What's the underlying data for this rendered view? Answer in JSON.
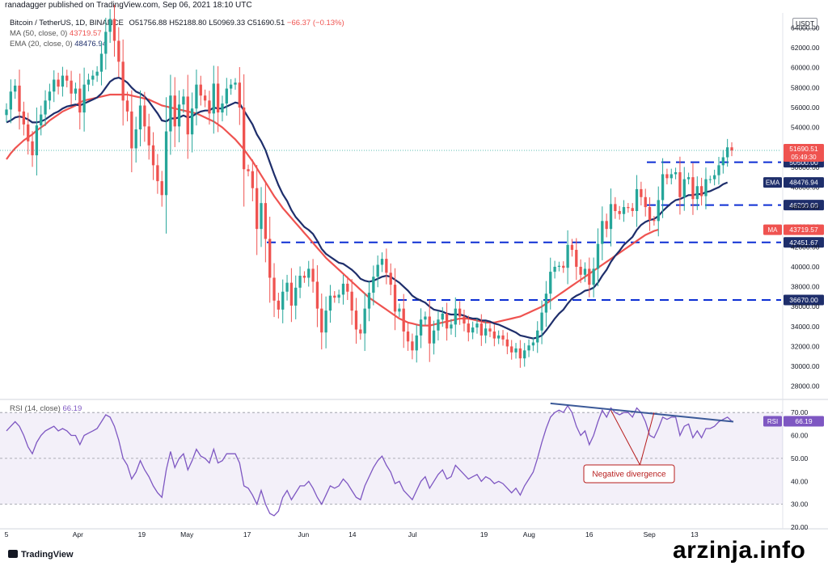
{
  "header": {
    "published": "ranadagger published on TradingView.com, Sep 06, 2021 18:10 UTC"
  },
  "legend": {
    "symbol": "Bitcoin / TetherUS, 1D, BINANCE",
    "ohlc": "O51756.88 H52188.80 L50969.33 C51690.51",
    "change": "−66.37 (−0.13%)",
    "ma_label": "MA (50, close, 0)",
    "ma_value": "43719.57",
    "ema_label": "EMA (20, close, 0)",
    "ema_value": "48476.94",
    "rsi_label": "RSI (14, close)",
    "rsi_value": "66.19"
  },
  "currency_badge": "USDT",
  "footer": {
    "logo": "TradingView",
    "watermark": "arzinja.info"
  },
  "colors": {
    "up": "#26a69a",
    "down": "#ef5350",
    "ma": "#ef5350",
    "ema": "#1e2e6b",
    "rsi": "#7e57c2",
    "dashed_lines": "#0d2fd4",
    "divergence_line": "#3b5998"
  },
  "chart_data": [
    {
      "type": "candlestick",
      "title": "Bitcoin / TetherUS, 1D, BINANCE",
      "ylim": [
        27000,
        65500
      ],
      "y_ticks": [
        28000,
        30000,
        32000,
        34000,
        36000,
        38000,
        40000,
        42000,
        44000,
        46000,
        48000,
        50000,
        52000,
        54000,
        56000,
        58000,
        60000,
        62000,
        64000
      ],
      "x_tick_labels": [
        "5",
        "Apr",
        "19",
        "May",
        "17",
        "Jun",
        "14",
        "Jul",
        "19",
        "Aug",
        "16",
        "Sep",
        "13"
      ],
      "horizontal_levels": [
        {
          "value": 50500,
          "label": "50500.00"
        },
        {
          "value": 46200,
          "label": "46200.00"
        },
        {
          "value": 42451.67,
          "label": "42451.67"
        },
        {
          "value": 36670,
          "label": "36670.00"
        }
      ],
      "price_badges": [
        {
          "label": "51690.51",
          "sub": "05:49:30",
          "value": 51690.51
        },
        {
          "label": "EMA",
          "value_text": "48476.94",
          "value": 48476.94
        },
        {
          "label": "MA",
          "value_text": "43719.57",
          "value": 43719.57
        }
      ],
      "closes": [
        55800,
        57600,
        58200,
        55600,
        54300,
        52600,
        51200,
        54200,
        55300,
        56700,
        57600,
        58800,
        58100,
        59200,
        58700,
        57400,
        57900,
        55500,
        58300,
        58800,
        59200,
        59600,
        61400,
        63600,
        64900,
        62700,
        60600,
        56700,
        55600,
        51900,
        53800,
        56200,
        54100,
        52200,
        50200,
        48600,
        47200,
        53600,
        57200,
        54100,
        56300,
        57100,
        53300,
        55900,
        58300,
        57200,
        56700,
        55400,
        58400,
        55500,
        56400,
        57900,
        58300,
        58500,
        56000,
        49800,
        49600,
        47900,
        43800,
        46400,
        42800,
        38900,
        36600,
        35700,
        37500,
        38400,
        36100,
        37900,
        39100,
        38900,
        39800,
        38500,
        35800,
        33400,
        35600,
        37100,
        36900,
        37200,
        38300,
        37500,
        35600,
        33700,
        33300,
        35800,
        37400,
        39000,
        40200,
        40800,
        39400,
        38200,
        35500,
        35800,
        33500,
        32500,
        31600,
        33100,
        34700,
        35000,
        32300,
        33600,
        34700,
        35300,
        33800,
        34200,
        35800,
        35000,
        34300,
        33400,
        33900,
        34300,
        33100,
        33800,
        33500,
        32800,
        33100,
        32700,
        32000,
        31400,
        31800,
        30800,
        31600,
        32100,
        32400,
        33600,
        35400,
        37300,
        39500,
        40000,
        40100,
        39900,
        42200,
        41700,
        40000,
        39200,
        39800,
        38200,
        39800,
        42300,
        44600,
        43800,
        46300,
        45600,
        45300,
        46000,
        45900,
        45600,
        47800,
        47000,
        46000,
        44700,
        44600,
        46700,
        49300,
        48900,
        49300,
        49500,
        47000,
        48800,
        49000,
        46800,
        48100,
        47100,
        48800,
        48800,
        49200,
        50200,
        51000,
        52000,
        51690
      ],
      "ma50": [
        50800,
        51400,
        51900,
        52300,
        52700,
        53000,
        53300,
        53700,
        54000,
        54300,
        54700,
        55000,
        55300,
        55600,
        55800,
        56000,
        56200,
        56500,
        56700,
        56800,
        56900,
        57000,
        57100,
        57200,
        57300,
        57300,
        57300,
        57300,
        57300,
        57200,
        57100,
        57000,
        56900,
        56800,
        56600,
        56400,
        56200,
        56100,
        56000,
        55900,
        55800,
        55700,
        55600,
        55500,
        55400,
        55200,
        55000,
        54800,
        54600,
        54300,
        54000,
        53600,
        53200,
        52800,
        52300,
        51800,
        51200,
        50600,
        49900,
        49200,
        48500,
        47800,
        47100,
        46500,
        45900,
        45400,
        44900,
        44400,
        43900,
        43400,
        42900,
        42400,
        41900,
        41400,
        40900,
        40500,
        40100,
        39700,
        39300,
        38900,
        38500,
        38100,
        37700,
        37300,
        36900,
        36600,
        36300,
        36000,
        35700,
        35400,
        35100,
        34800,
        34600,
        34400,
        34300,
        34200,
        34100,
        34100,
        34100,
        34200,
        34300,
        34400,
        34500,
        34600,
        34700,
        34800,
        34800,
        34800,
        34700,
        34600,
        34500,
        34400,
        34400,
        34400,
        34500,
        34600,
        34700,
        34800,
        34900,
        35000,
        35200,
        35400,
        35600,
        35800,
        36000,
        36300,
        36600,
        36900,
        37200,
        37500,
        37800,
        38100,
        38400,
        38700,
        39000,
        39300,
        39600,
        39900,
        40200,
        40500,
        40800,
        41100,
        41400,
        41700,
        42000,
        42300,
        42600,
        42900,
        43200,
        43400,
        43600,
        43720
      ],
      "ema20": [
        54500,
        54700,
        55000,
        55100,
        55000,
        54800,
        54500,
        54500,
        54600,
        54800,
        55100,
        55400,
        55600,
        55900,
        56100,
        56200,
        56300,
        56200,
        56400,
        56600,
        56800,
        57000,
        57400,
        58000,
        58600,
        58900,
        59000,
        58800,
        58500,
        58000,
        57600,
        57400,
        57100,
        56600,
        56000,
        55400,
        54700,
        54600,
        54900,
        54900,
        55000,
        55200,
        55000,
        55100,
        55400,
        55600,
        55700,
        55700,
        56000,
        55900,
        55900,
        56100,
        56300,
        56500,
        56400,
        55700,
        55000,
        54300,
        53300,
        52600,
        51700,
        50500,
        49300,
        48200,
        47300,
        46600,
        45700,
        45000,
        44500,
        44000,
        43700,
        43300,
        42600,
        41800,
        41300,
        41000,
        40700,
        40400,
        40300,
        40000,
        39700,
        39300,
        38800,
        38600,
        38500,
        38600,
        38800,
        39000,
        39100,
        39000,
        38700,
        38400,
        38000,
        37600,
        37100,
        36800,
        36600,
        36400,
        36000,
        35700,
        35600,
        35500,
        35300,
        35200,
        35200,
        35200,
        35100,
        34900,
        34800,
        34800,
        34600,
        34600,
        34500,
        34300,
        34200,
        34000,
        33800,
        33600,
        33400,
        33100,
        33000,
        32900,
        32800,
        32900,
        33100,
        33600,
        34200,
        34800,
        35300,
        35700,
        36300,
        36800,
        37100,
        37300,
        37600,
        37700,
        37900,
        38400,
        39100,
        39700,
        40500,
        41100,
        41600,
        42200,
        42600,
        43000,
        43700,
        44200,
        44500,
        44700,
        44800,
        45100,
        45600,
        46000,
        46400,
        46700,
        46800,
        47000,
        47200,
        47200,
        47300,
        47300,
        47500,
        47600,
        47800,
        48000,
        48300,
        48476
      ]
    },
    {
      "type": "line",
      "title": "RSI (14, close)",
      "ylim": [
        20,
        75
      ],
      "y_ticks": [
        20,
        30,
        40,
        50,
        60,
        70
      ],
      "band": [
        30,
        70
      ],
      "series": [
        {
          "name": "RSI (14, close)",
          "values": [
            62,
            64,
            66,
            64,
            60,
            55,
            52,
            57,
            60,
            62,
            63,
            64,
            62,
            63,
            62,
            60,
            60,
            56,
            60,
            61,
            62,
            63,
            66,
            69,
            68,
            64,
            58,
            50,
            47,
            41,
            44,
            49,
            45,
            42,
            38,
            35,
            33,
            45,
            53,
            46,
            50,
            52,
            45,
            49,
            54,
            51,
            50,
            48,
            54,
            48,
            49,
            52,
            52,
            52,
            48,
            38,
            37,
            34,
            30,
            36,
            30,
            26,
            25,
            27,
            33,
            36,
            32,
            35,
            38,
            38,
            40,
            37,
            33,
            30,
            34,
            38,
            37,
            38,
            41,
            39,
            36,
            33,
            32,
            38,
            42,
            46,
            49,
            51,
            47,
            44,
            39,
            40,
            36,
            34,
            32,
            36,
            40,
            42,
            37,
            40,
            43,
            45,
            41,
            42,
            47,
            45,
            43,
            41,
            42,
            43,
            40,
            42,
            41,
            39,
            40,
            39,
            37,
            35,
            37,
            34,
            38,
            41,
            44,
            50,
            57,
            63,
            68,
            70,
            71,
            70,
            73,
            70,
            64,
            60,
            62,
            56,
            60,
            66,
            71,
            68,
            72,
            70,
            69,
            70,
            70,
            68,
            72,
            70,
            66,
            60,
            59,
            63,
            68,
            67,
            68,
            68,
            60,
            64,
            65,
            59,
            62,
            59,
            63,
            63,
            64,
            66,
            67,
            68,
            66.19
          ]
        }
      ],
      "annotations": [
        {
          "text": "Negative divergence"
        }
      ],
      "value_badge": {
        "label": "RSI",
        "value_text": "66.19"
      }
    }
  ]
}
